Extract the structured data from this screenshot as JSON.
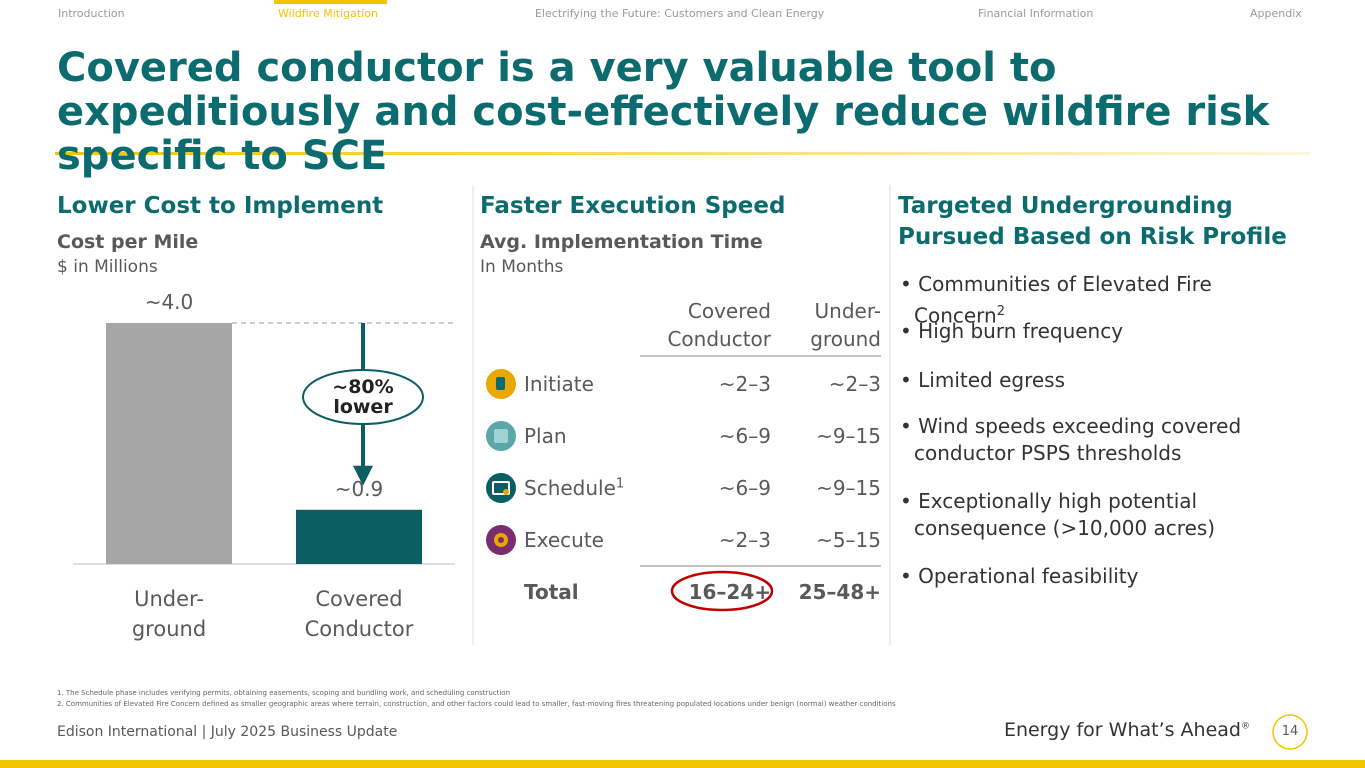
{
  "nav": {
    "items": [
      "Introduction",
      "Wildfire Mitigation",
      "Electrifying the Future: Customers and Clean Energy",
      "Financial Information",
      "Appendix"
    ],
    "active": 1
  },
  "title": "Covered conductor is a very valuable tool to expeditiously and cost-effectively reduce wildfire risk specific to SCE",
  "cost": {
    "heading": "Lower Cost to Implement",
    "subheading": "Cost per Mile",
    "unit": "$ in Millions"
  },
  "chart_data": {
    "type": "bar",
    "categories": [
      "Under-\nground",
      "Covered\nConductor"
    ],
    "values": [
      4.0,
      0.9
    ],
    "value_labels": [
      "~4.0",
      "~0.9"
    ],
    "colors": [
      "#a6a6a6",
      "#0b5e63"
    ],
    "annotation": "~80%\nlower"
  },
  "speed": {
    "heading": "Faster Execution Speed",
    "subheading": "Avg. Implementation Time",
    "unit": "In Months",
    "columns": [
      "Covered\nConductor",
      "Under-\nground"
    ],
    "rows": [
      {
        "label": "Initiate",
        "values": [
          "~2–3",
          "~2–3"
        ]
      },
      {
        "label": "Plan",
        "values": [
          "~6–9",
          "~9–15"
        ]
      },
      {
        "label": "Schedule",
        "sup": "1",
        "values": [
          "~6–9",
          "~9–15"
        ]
      },
      {
        "label": "Execute",
        "values": [
          "~2–3",
          "~5–15"
        ]
      }
    ],
    "total": {
      "label": "Total",
      "values": [
        "16–24+",
        "25–48+"
      ]
    }
  },
  "targeted": {
    "heading": "Targeted Undergrounding\nPursued Based on Risk Profile",
    "bullets": [
      {
        "text": "Communities of Elevated Fire Concern",
        "sup": "2"
      },
      {
        "text": "High burn frequency"
      },
      {
        "text": "Limited egress"
      },
      {
        "text": "Wind speeds exceeding covered conductor PSPS thresholds"
      },
      {
        "text": "Exceptionally high potential consequence (>10,000 acres)"
      },
      {
        "text": "Operational feasibility"
      }
    ]
  },
  "footnotes": [
    "1.   The Schedule phase includes verifying permits, obtaining easements, scoping and bundling work, and scheduling construction",
    "2.   Communities of Elevated Fire Concern defined as smaller geographic areas where terrain, construction, and other factors could lead to smaller, fast-moving fires threatening populated locations under benign (normal) weather conditions"
  ],
  "footer": {
    "left": "Edison International |  July 2025 Business Update",
    "tagline": "Energy for What’s Ahead",
    "mark": "®",
    "page": "14"
  }
}
